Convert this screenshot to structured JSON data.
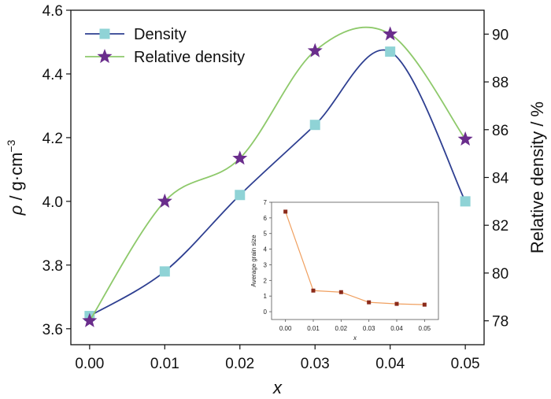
{
  "chart_data": [
    {
      "type": "line",
      "x": [
        0.0,
        0.01,
        0.02,
        0.03,
        0.04,
        0.05
      ],
      "x_tick_labels": [
        "0.00",
        "0.01",
        "0.02",
        "0.03",
        "0.04",
        "0.05"
      ],
      "xlabel": "x",
      "xlim": [
        -0.0025,
        0.0525
      ],
      "ylabel_left": {
        "symbol": "ρ",
        "unit": " / g·cm",
        "exponent": "−3"
      },
      "ylim_left": [
        3.55,
        4.6
      ],
      "yticks_left": [
        "3.6",
        "3.8",
        "4.0",
        "4.2",
        "4.4",
        "4.6"
      ],
      "yticks_left_values": [
        3.6,
        3.8,
        4.0,
        4.2,
        4.4,
        4.6
      ],
      "ylabel_right": "Relative density / %",
      "ylim_right": [
        77,
        91
      ],
      "yticks_right": [
        "78",
        "80",
        "82",
        "84",
        "86",
        "88",
        "90"
      ],
      "yticks_right_values": [
        78,
        80,
        82,
        84,
        86,
        88,
        90
      ],
      "legend_position": "top-left",
      "series": [
        {
          "name": "Density",
          "axis": "left",
          "values": [
            3.64,
            3.78,
            4.02,
            4.24,
            4.47,
            4.0
          ],
          "line_color": "#2e3f91",
          "marker": "square",
          "marker_color": "#8fd3d6"
        },
        {
          "name": "Relative density",
          "axis": "right",
          "values": [
            78.0,
            83.0,
            84.8,
            89.3,
            90.0,
            85.6
          ],
          "line_color": "#8ec96b",
          "marker": "star",
          "marker_color": "#6a2d8c"
        }
      ]
    },
    {
      "type": "line",
      "inset": true,
      "x": [
        0.0,
        0.01,
        0.02,
        0.03,
        0.04,
        0.05
      ],
      "x_tick_labels": [
        "0.00",
        "0.01",
        "0.02",
        "0.03",
        "0.04",
        "0.05"
      ],
      "xlabel": "x",
      "xlim": [
        -0.005,
        0.055
      ],
      "ylabel": "Average grain size",
      "ylim": [
        -0.5,
        7
      ],
      "yticks": [
        "0",
        "1",
        "2",
        "3",
        "4",
        "5",
        "6",
        "7"
      ],
      "yticks_values": [
        0,
        1,
        2,
        3,
        4,
        5,
        6,
        7
      ],
      "series": [
        {
          "values": [
            6.4,
            1.35,
            1.25,
            0.6,
            0.5,
            0.45
          ],
          "line_color": "#f0a060",
          "marker": "square",
          "marker_color": "#8b2a1a"
        }
      ]
    }
  ]
}
